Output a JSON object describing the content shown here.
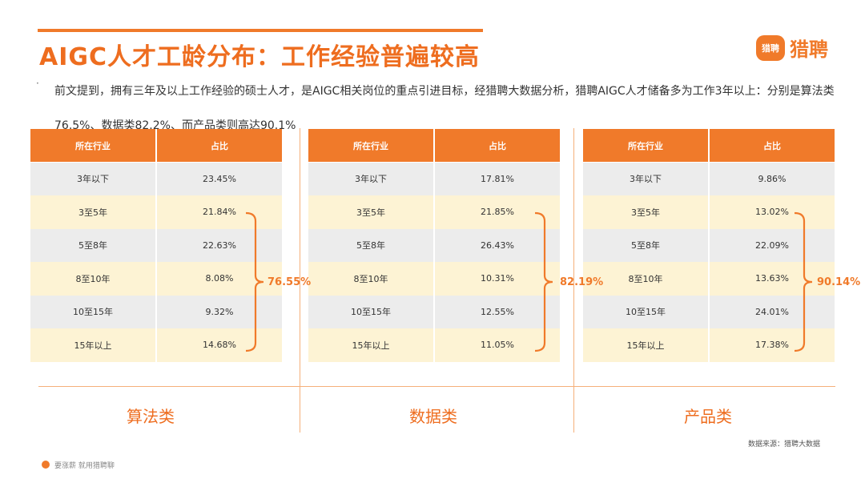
{
  "title": "AIGC人才工龄分布：工作经验普遍较高",
  "logo": {
    "badge_text": "猎聘",
    "text": "猎聘"
  },
  "bullet": "·",
  "intro": "前文提到，拥有三年及以上工作经验的硕士人才，是AIGC相关岗位的重点引进目标，经猎聘大数据分析，猎聘AIGC人才储备多为工作3年以上：分别是算法类76.5%、数据类82.2%、而产品类则高达90.1%",
  "tables": [
    {
      "category": "算法类",
      "header": [
        "所在行业",
        "占比"
      ],
      "rows": [
        [
          "3年以下",
          "23.45%"
        ],
        [
          "3至5年",
          "21.84%"
        ],
        [
          "5至8年",
          "22.63%"
        ],
        [
          "8至10年",
          "8.08%"
        ],
        [
          "10至15年",
          "9.32%"
        ],
        [
          "15年以上",
          "14.68%"
        ]
      ],
      "brace_total": "76.55%"
    },
    {
      "category": "数据类",
      "header": [
        "所在行业",
        "占比"
      ],
      "rows": [
        [
          "3年以下",
          "17.81%"
        ],
        [
          "3至5年",
          "21.85%"
        ],
        [
          "5至8年",
          "26.43%"
        ],
        [
          "8至10年",
          "10.31%"
        ],
        [
          "10至15年",
          "12.55%"
        ],
        [
          "15年以上",
          "11.05%"
        ]
      ],
      "brace_total": "82.19%"
    },
    {
      "category": "产品类",
      "header": [
        "所在行业",
        "占比"
      ],
      "rows": [
        [
          "3年以下",
          "9.86%"
        ],
        [
          "3至5年",
          "13.02%"
        ],
        [
          "5至8年",
          "22.09%"
        ],
        [
          "8至10年",
          "13.63%"
        ],
        [
          "10至15年",
          "24.01%"
        ],
        [
          "15年以上",
          "17.38%"
        ]
      ],
      "brace_total": "90.14%"
    }
  ],
  "source": "数据来源：猎聘大数据",
  "footer": "要涨薪 就用猎聘聊",
  "colors": {
    "accent": "#f07a2a",
    "title": "#ee6d1f",
    "row_gray": "#ececec",
    "row_cream": "#fdf3d4"
  }
}
